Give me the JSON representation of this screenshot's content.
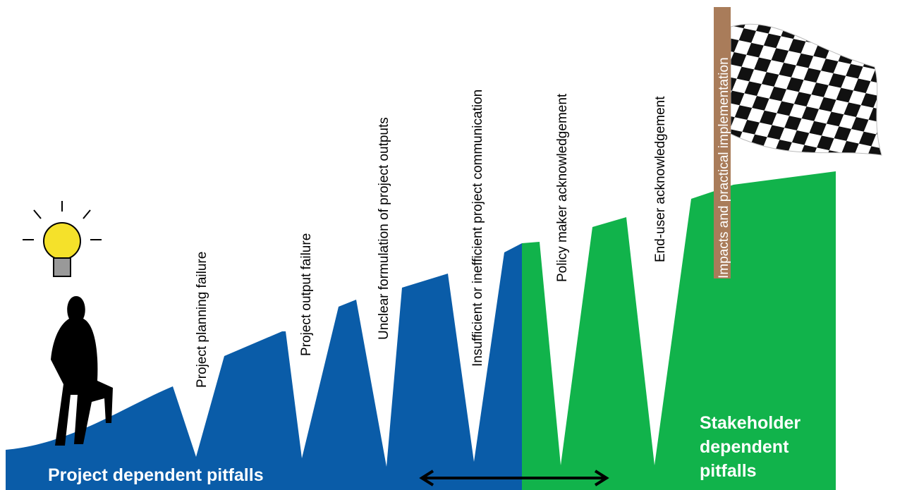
{
  "pitfalls": [
    "Project planning failure",
    "Project output failure",
    "Unclear formulation of project outputs",
    "Insufficient or inefficient project communication",
    "Policy maker acknowledgement",
    "End-user acknowledgement"
  ],
  "goal": "Impacts and practical implementation",
  "project_group": "Project dependent pitfalls",
  "stakeholder_group": [
    "Stakeholder",
    "dependent",
    "pitfalls"
  ]
}
